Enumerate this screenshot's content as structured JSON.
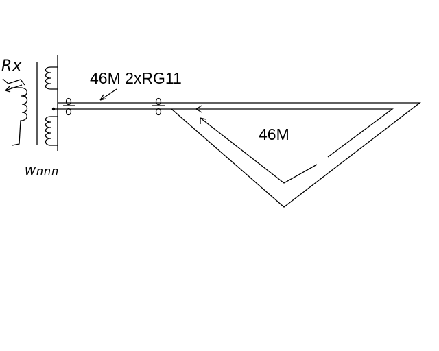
{
  "diagram": {
    "cable_label": "46M 2xRG11",
    "loop_label": "46M",
    "receiver_label": "Rx",
    "transformer_label": "Wnnn"
  }
}
